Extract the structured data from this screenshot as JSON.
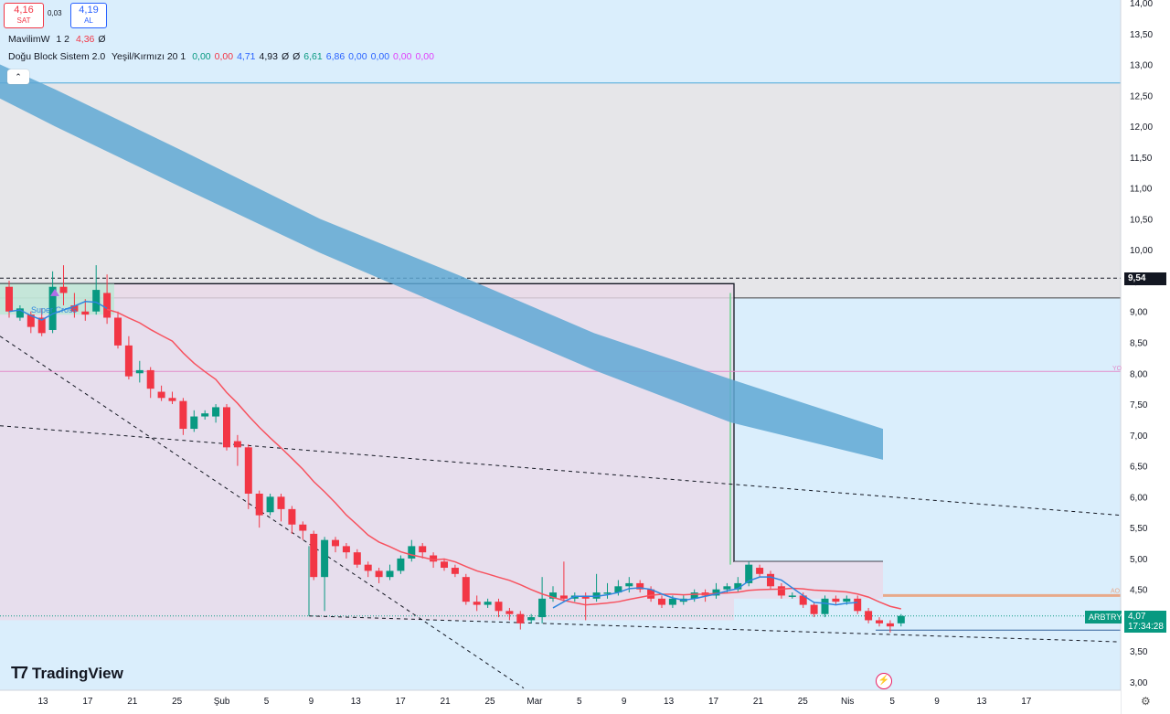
{
  "order_panel": {
    "sell_price": "4,16",
    "sell_label": "SAT",
    "spread": "0,03",
    "buy_price": "4,19",
    "buy_label": "AL"
  },
  "indicators": [
    {
      "name": "MavilimW",
      "params": "1 2",
      "values": [
        {
          "v": "4,36",
          "c": "#f23645"
        },
        {
          "v": "Ø",
          "c": "#131722"
        }
      ]
    },
    {
      "name": "Doğu Block Sistem 2.0",
      "params": "Yeşil/Kırmızı 20 1",
      "values": [
        {
          "v": "0,00",
          "c": "#089981"
        },
        {
          "v": "0,00",
          "c": "#f23645"
        },
        {
          "v": "4,71",
          "c": "#2962ff"
        },
        {
          "v": "4,93",
          "c": "#131722"
        },
        {
          "v": "Ø",
          "c": "#131722"
        },
        {
          "v": "Ø",
          "c": "#131722"
        },
        {
          "v": "6,61",
          "c": "#089981"
        },
        {
          "v": "6,86",
          "c": "#2962ff"
        },
        {
          "v": "0,00",
          "c": "#2962ff"
        },
        {
          "v": "0,00",
          "c": "#2962ff"
        },
        {
          "v": "0,00",
          "c": "#e040fb"
        },
        {
          "v": "0,00",
          "c": "#e040fb"
        }
      ]
    }
  ],
  "collapse_icon": "chevron-up-icon",
  "brand": "TradingView",
  "symbol": "ARBTRY",
  "last_price": "4,07",
  "countdown": "17:34:28",
  "marked_level": "9,54",
  "right_labels": {
    "yo": "YO",
    "ao": "AO"
  },
  "crossover_label": "Super Cross",
  "colors": {
    "up": "#089981",
    "down": "#f23645",
    "ma": "#f7525f",
    "band": "#5fa8d3",
    "bg": "#daeefc",
    "box_top": "#e6e6e9",
    "box_pink": "#ead9e9"
  },
  "chart_data": {
    "type": "candlestick",
    "y_axis": {
      "min": 3.0,
      "max": 14.0,
      "ticks": [
        "3,00",
        "3,50",
        "4,00",
        "4,50",
        "5,00",
        "5,50",
        "6,00",
        "6,50",
        "7,00",
        "7,50",
        "8,00",
        "8,50",
        "9,00",
        "9,50",
        "10,00",
        "10,50",
        "11,00",
        "11,50",
        "12,00",
        "12,50",
        "13,00",
        "13,50",
        "14,00"
      ]
    },
    "x_axis": {
      "ticks": [
        "13",
        "17",
        "21",
        "25",
        "Şub",
        "5",
        "9",
        "13",
        "17",
        "21",
        "25",
        "Mar",
        "5",
        "9",
        "13",
        "17",
        "21",
        "25",
        "Nis",
        "5",
        "9",
        "13",
        "17"
      ]
    },
    "candles": [
      [
        9.4,
        9.0,
        9.5,
        8.9
      ],
      [
        8.9,
        9.05,
        9.1,
        8.85
      ],
      [
        8.95,
        8.75,
        9.0,
        8.65
      ],
      [
        8.9,
        8.65,
        9.05,
        8.6
      ],
      [
        8.7,
        9.4,
        9.65,
        8.65
      ],
      [
        9.4,
        9.3,
        9.75,
        9.1
      ],
      [
        9.1,
        9.0,
        9.3,
        8.9
      ],
      [
        9.0,
        8.95,
        9.2,
        8.85
      ],
      [
        9.0,
        9.35,
        9.75,
        8.95
      ],
      [
        9.3,
        8.9,
        9.6,
        8.8
      ],
      [
        8.9,
        8.45,
        9.0,
        8.4
      ],
      [
        8.45,
        7.95,
        8.6,
        7.9
      ],
      [
        8.0,
        8.05,
        8.2,
        7.85
      ],
      [
        8.05,
        7.75,
        8.1,
        7.6
      ],
      [
        7.7,
        7.6,
        7.8,
        7.55
      ],
      [
        7.6,
        7.55,
        7.7,
        7.5
      ],
      [
        7.55,
        7.1,
        7.6,
        7.0
      ],
      [
        7.1,
        7.3,
        7.4,
        7.05
      ],
      [
        7.3,
        7.35,
        7.4,
        7.25
      ],
      [
        7.3,
        7.45,
        7.5,
        7.2
      ],
      [
        7.45,
        6.8,
        7.5,
        6.75
      ],
      [
        6.9,
        6.8,
        7.0,
        6.5
      ],
      [
        6.8,
        6.05,
        6.85,
        5.8
      ],
      [
        6.05,
        5.7,
        6.1,
        5.5
      ],
      [
        5.75,
        6.0,
        6.05,
        5.7
      ],
      [
        6.0,
        5.8,
        6.05,
        5.6
      ],
      [
        5.8,
        5.55,
        5.85,
        5.4
      ],
      [
        5.55,
        5.45,
        5.6,
        5.3
      ],
      [
        5.4,
        4.7,
        5.45,
        4.65
      ],
      [
        4.7,
        5.3,
        5.35,
        4.15
      ],
      [
        5.3,
        5.2,
        5.35,
        5.1
      ],
      [
        5.2,
        5.1,
        5.25,
        5.0
      ],
      [
        5.1,
        4.9,
        5.15,
        4.85
      ],
      [
        4.9,
        4.8,
        4.95,
        4.7
      ],
      [
        4.8,
        4.7,
        4.85,
        4.6
      ],
      [
        4.7,
        4.8,
        4.9,
        4.65
      ],
      [
        4.8,
        5.0,
        5.05,
        4.75
      ],
      [
        5.0,
        5.2,
        5.3,
        4.95
      ],
      [
        5.2,
        5.1,
        5.25,
        5.0
      ],
      [
        5.05,
        4.95,
        5.1,
        4.85
      ],
      [
        4.95,
        4.85,
        5.0,
        4.8
      ],
      [
        4.85,
        4.75,
        4.9,
        4.7
      ],
      [
        4.7,
        4.3,
        4.75,
        4.25
      ],
      [
        4.3,
        4.25,
        4.4,
        4.15
      ],
      [
        4.25,
        4.3,
        4.35,
        4.2
      ],
      [
        4.3,
        4.15,
        4.35,
        4.05
      ],
      [
        4.15,
        4.1,
        4.2,
        4.0
      ],
      [
        4.1,
        3.95,
        4.15,
        3.85
      ],
      [
        4.0,
        4.05,
        4.1,
        3.95
      ],
      [
        4.05,
        4.35,
        4.7,
        3.95
      ],
      [
        4.35,
        4.45,
        4.55,
        4.3
      ],
      [
        4.4,
        4.35,
        4.95,
        4.3
      ],
      [
        4.35,
        4.4,
        4.45,
        4.3
      ],
      [
        4.4,
        4.35,
        4.45,
        4.0
      ],
      [
        4.35,
        4.45,
        4.75,
        4.3
      ],
      [
        4.45,
        4.45,
        4.6,
        4.35
      ],
      [
        4.45,
        4.55,
        4.65,
        4.4
      ],
      [
        4.55,
        4.6,
        4.7,
        4.45
      ],
      [
        4.6,
        4.5,
        4.65,
        4.45
      ],
      [
        4.5,
        4.35,
        4.55,
        4.3
      ],
      [
        4.35,
        4.25,
        4.4,
        4.2
      ],
      [
        4.25,
        4.35,
        4.4,
        4.2
      ],
      [
        4.3,
        4.35,
        4.4,
        4.25
      ],
      [
        4.35,
        4.45,
        4.5,
        4.3
      ],
      [
        4.45,
        4.4,
        4.5,
        4.3
      ],
      [
        4.4,
        4.5,
        4.6,
        4.35
      ],
      [
        4.5,
        4.55,
        4.6,
        4.45
      ],
      [
        4.5,
        4.6,
        4.7,
        4.45
      ],
      [
        4.6,
        4.9,
        4.95,
        4.55
      ],
      [
        4.85,
        4.75,
        4.9,
        4.7
      ],
      [
        4.75,
        4.55,
        4.8,
        4.5
      ],
      [
        4.55,
        4.4,
        4.6,
        4.35
      ],
      [
        4.4,
        4.4,
        4.45,
        4.35
      ],
      [
        4.4,
        4.25,
        4.45,
        4.2
      ],
      [
        4.25,
        4.1,
        4.3,
        4.05
      ],
      [
        4.1,
        4.35,
        4.4,
        4.05
      ],
      [
        4.35,
        4.3,
        4.4,
        4.25
      ],
      [
        4.3,
        4.35,
        4.4,
        4.25
      ],
      [
        4.35,
        4.15,
        4.4,
        4.1
      ],
      [
        4.15,
        4.0,
        4.2,
        3.95
      ],
      [
        4.0,
        3.95,
        4.05,
        3.9
      ],
      [
        3.95,
        3.9,
        4.0,
        3.8
      ],
      [
        3.95,
        4.07,
        4.1,
        3.9
      ]
    ]
  }
}
